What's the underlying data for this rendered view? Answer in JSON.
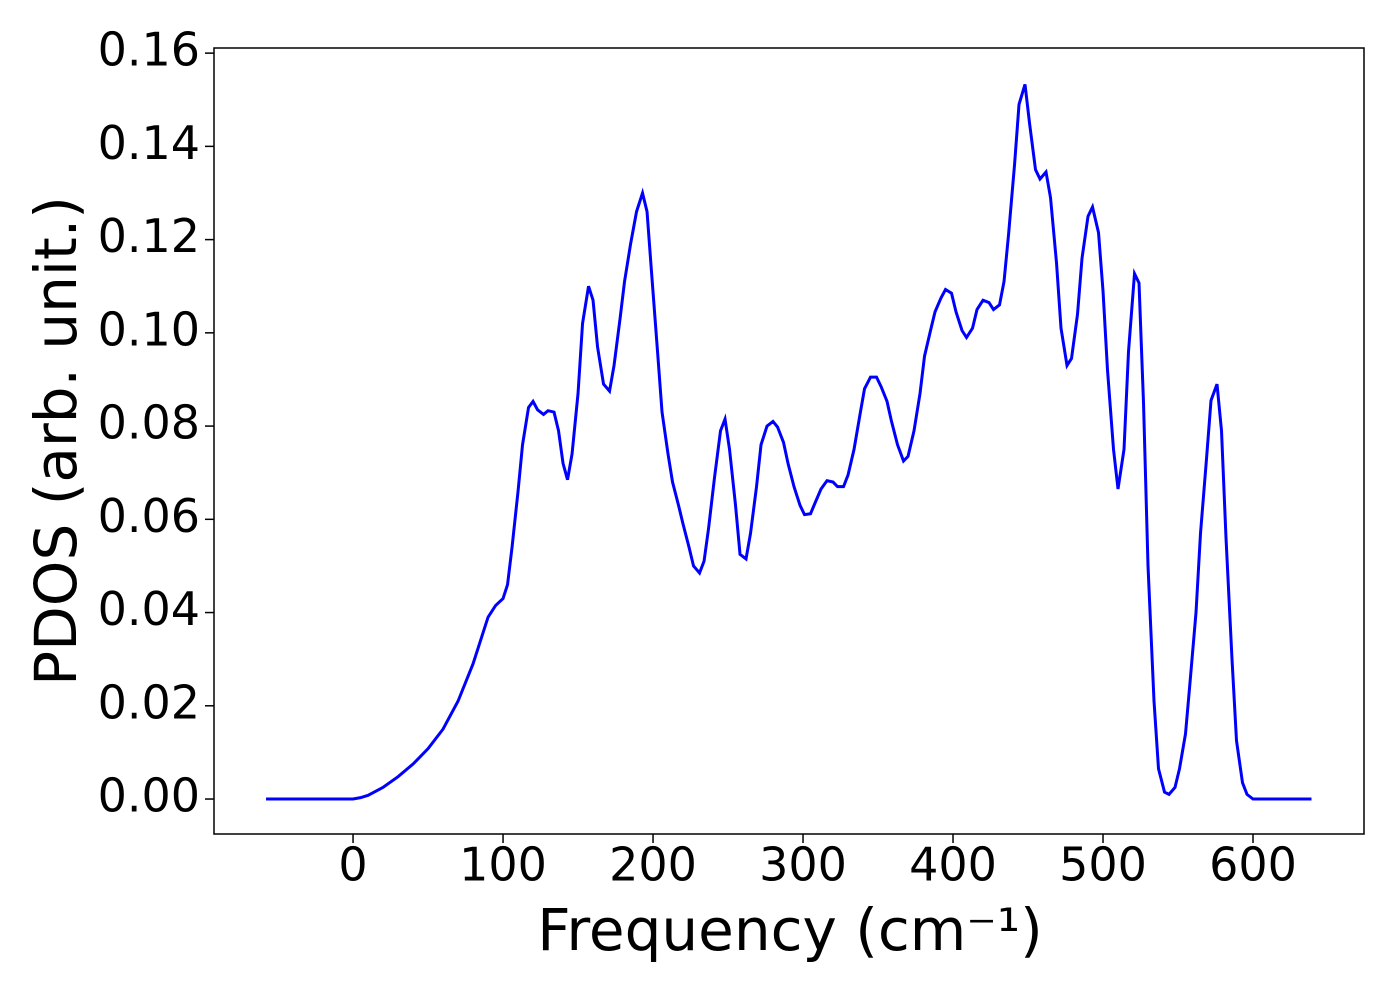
{
  "chart_data": {
    "type": "line",
    "xlabel": "Frequency (cm⁻¹)",
    "ylabel": "PDOS (arb. unit.)",
    "x": [
      -58,
      0,
      5,
      10,
      20,
      30,
      40,
      50,
      60,
      70,
      80,
      90,
      95,
      100,
      103,
      106,
      110,
      113,
      117,
      120,
      123,
      127,
      130,
      134,
      137,
      140,
      143,
      146,
      150,
      153,
      157,
      160,
      163,
      167,
      171,
      174,
      178,
      181,
      185,
      189,
      193,
      196,
      199,
      203,
      206,
      210,
      213,
      217,
      220,
      224,
      227,
      231,
      234,
      237,
      241,
      245,
      248,
      251,
      255,
      258,
      262,
      265,
      269,
      272,
      276,
      280,
      283,
      287,
      290,
      294,
      298,
      301,
      305,
      308,
      312,
      316,
      320,
      323,
      327,
      330,
      334,
      338,
      341,
      345,
      349,
      352,
      356,
      359,
      363,
      367,
      370,
      374,
      378,
      381,
      385,
      388,
      392,
      395,
      399,
      402,
      406,
      409,
      413,
      416,
      420,
      424,
      427,
      431,
      434,
      437,
      441,
      444,
      448,
      451,
      455,
      458,
      462,
      465,
      469,
      472,
      476,
      479,
      483,
      486,
      490,
      493,
      497,
      500,
      503,
      507,
      510,
      514,
      517,
      521,
      524,
      527,
      530,
      534,
      537,
      541,
      544,
      548,
      551,
      555,
      558,
      562,
      565,
      569,
      572,
      576,
      579,
      582,
      586,
      589,
      593,
      596,
      600,
      639
    ],
    "series": [
      {
        "color": "#0000ff",
        "values": [
          0,
          0,
          0.0003,
          0.0008,
          0.0025,
          0.0048,
          0.0075,
          0.0108,
          0.015,
          0.021,
          0.029,
          0.039,
          0.0415,
          0.043,
          0.046,
          0.054,
          0.066,
          0.076,
          0.084,
          0.0853,
          0.0835,
          0.0825,
          0.0833,
          0.083,
          0.079,
          0.072,
          0.0685,
          0.074,
          0.087,
          0.102,
          0.11,
          0.107,
          0.097,
          0.089,
          0.0875,
          0.093,
          0.103,
          0.111,
          0.119,
          0.126,
          0.13,
          0.126,
          0.113,
          0.096,
          0.083,
          0.074,
          0.068,
          0.063,
          0.059,
          0.054,
          0.05,
          0.0485,
          0.051,
          0.058,
          0.069,
          0.079,
          0.0815,
          0.075,
          0.063,
          0.0525,
          0.0515,
          0.057,
          0.067,
          0.076,
          0.08,
          0.081,
          0.0798,
          0.0765,
          0.072,
          0.067,
          0.063,
          0.061,
          0.0612,
          0.0635,
          0.0665,
          0.0683,
          0.068,
          0.067,
          0.067,
          0.0695,
          0.075,
          0.0825,
          0.088,
          0.0905,
          0.0905,
          0.0885,
          0.0853,
          0.081,
          0.076,
          0.0725,
          0.0735,
          0.079,
          0.087,
          0.095,
          0.1005,
          0.1045,
          0.1075,
          0.1093,
          0.1085,
          0.1045,
          0.1005,
          0.099,
          0.101,
          0.105,
          0.107,
          0.1065,
          0.105,
          0.106,
          0.111,
          0.121,
          0.136,
          0.149,
          0.1533,
          0.145,
          0.135,
          0.133,
          0.1345,
          0.129,
          0.115,
          0.101,
          0.093,
          0.0945,
          0.104,
          0.116,
          0.125,
          0.127,
          0.1215,
          0.109,
          0.092,
          0.075,
          0.0665,
          0.075,
          0.096,
          0.1127,
          0.1107,
          0.085,
          0.05,
          0.021,
          0.0065,
          0.0015,
          0.001,
          0.0025,
          0.0065,
          0.014,
          0.025,
          0.04,
          0.057,
          0.073,
          0.0855,
          0.089,
          0.079,
          0.056,
          0.03,
          0.0125,
          0.0035,
          0.001,
          0,
          0
        ]
      }
    ],
    "xlim": [
      -92.7,
      674
    ],
    "ylim": [
      -0.0075,
      0.1611
    ],
    "xticks": [
      0,
      100,
      200,
      300,
      400,
      500,
      600
    ],
    "yticks": [
      {
        "value": 0,
        "label": "0.00"
      },
      {
        "value": 0.02,
        "label": "0.02"
      },
      {
        "value": 0.04,
        "label": "0.04"
      },
      {
        "value": 0.06,
        "label": "0.06"
      },
      {
        "value": 0.08,
        "label": "0.08"
      },
      {
        "value": 0.1,
        "label": "0.10"
      },
      {
        "value": 0.12,
        "label": "0.12"
      },
      {
        "value": 0.14,
        "label": "0.14"
      },
      {
        "value": 0.16,
        "label": "0.16"
      }
    ],
    "grid": false
  }
}
